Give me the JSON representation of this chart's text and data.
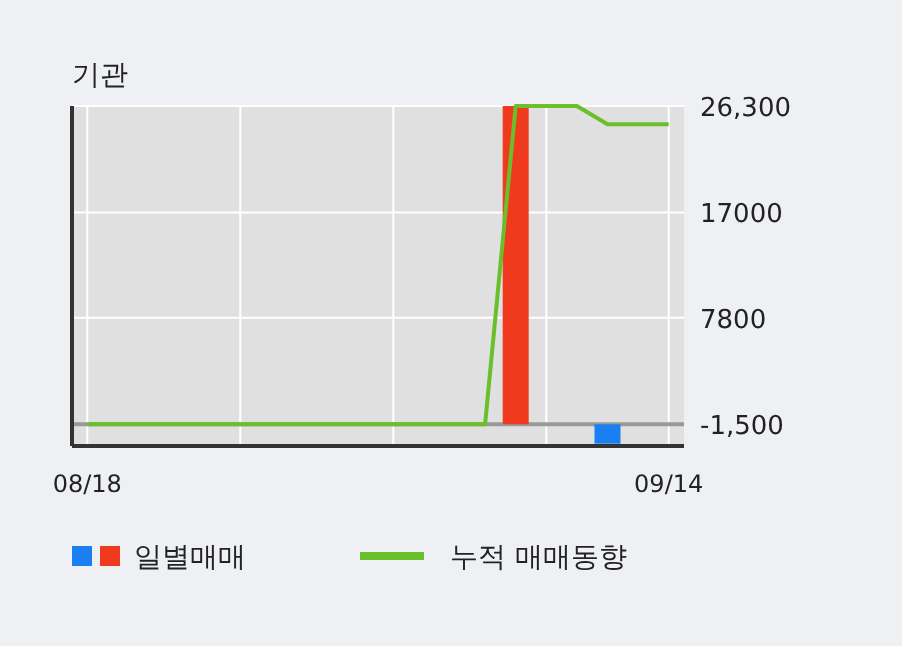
{
  "chart_data": {
    "type": "bar",
    "title": "기관",
    "categories": [
      "08/18",
      null,
      null,
      null,
      null,
      null,
      null,
      null,
      null,
      null,
      null,
      null,
      null,
      null,
      null,
      null,
      null,
      null,
      null,
      "09/14"
    ],
    "series": [
      {
        "name": "일별매매",
        "colors": [
          null,
          null,
          null,
          null,
          null,
          null,
          null,
          null,
          null,
          null,
          null,
          null,
          null,
          null,
          "#f03a1e",
          null,
          null,
          "#1a7ff0",
          null,
          null
        ],
        "base": [
          null,
          null,
          null,
          null,
          null,
          null,
          null,
          null,
          null,
          null,
          null,
          null,
          null,
          null,
          -1500,
          null,
          null,
          -1500,
          null,
          null
        ],
        "values": [
          null,
          null,
          null,
          null,
          null,
          null,
          null,
          null,
          null,
          null,
          null,
          null,
          null,
          null,
          27800,
          null,
          null,
          -1700,
          null,
          null
        ]
      },
      {
        "name": "누적 매매동향",
        "type": "line",
        "color": "#6abf2a",
        "values": [
          -1500,
          -1500,
          -1500,
          -1500,
          -1500,
          -1500,
          -1500,
          -1500,
          -1500,
          -1500,
          -1500,
          -1500,
          -1500,
          -1500,
          26300,
          26300,
          26300,
          24700,
          24700,
          24700
        ]
      }
    ],
    "ylim": [
      -3400,
      26300
    ],
    "yticks": [
      {
        "value": 26300,
        "label": "26,300"
      },
      17000,
      7800,
      {
        "value": -1500,
        "label": "-1,500"
      }
    ],
    "ref_lines": [
      {
        "axis": "y",
        "value": -1500,
        "color": "#999999"
      }
    ],
    "grid": true,
    "legend": "bottom"
  }
}
